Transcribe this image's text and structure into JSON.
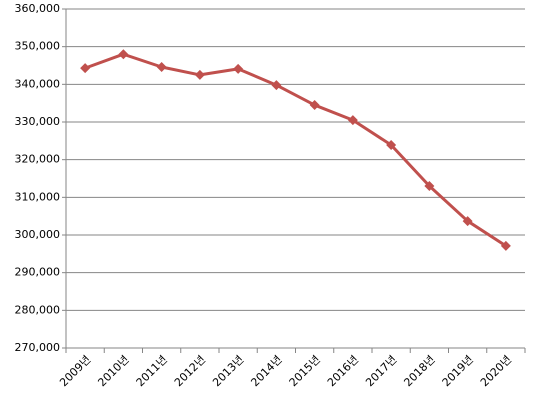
{
  "chart_data": {
    "type": "line",
    "categories": [
      "2009년",
      "2010년",
      "2011년",
      "2012년",
      "2013년",
      "2014년",
      "2015년",
      "2016년",
      "2017년",
      "2018년",
      "2019년",
      "2020년"
    ],
    "series": [
      {
        "color": "#c0504d",
        "values": [
          344300,
          348000,
          344600,
          342500,
          344100,
          339800,
          334500,
          330500,
          323900,
          313000,
          303700,
          297100
        ]
      }
    ],
    "ylim": [
      270000,
      360000
    ],
    "yticks": [
      {
        "value": 270000,
        "label": "270,000"
      },
      {
        "value": 280000,
        "label": "280,000"
      },
      {
        "value": 290000,
        "label": "290,000"
      },
      {
        "value": 300000,
        "label": "300,000"
      },
      {
        "value": 310000,
        "label": "310,000"
      },
      {
        "value": 320000,
        "label": "320,000"
      },
      {
        "value": 330000,
        "label": "330,000"
      },
      {
        "value": 340000,
        "label": "340,000"
      },
      {
        "value": 350000,
        "label": "350,000"
      },
      {
        "value": 360000,
        "label": "360,000"
      }
    ],
    "grid": true
  }
}
